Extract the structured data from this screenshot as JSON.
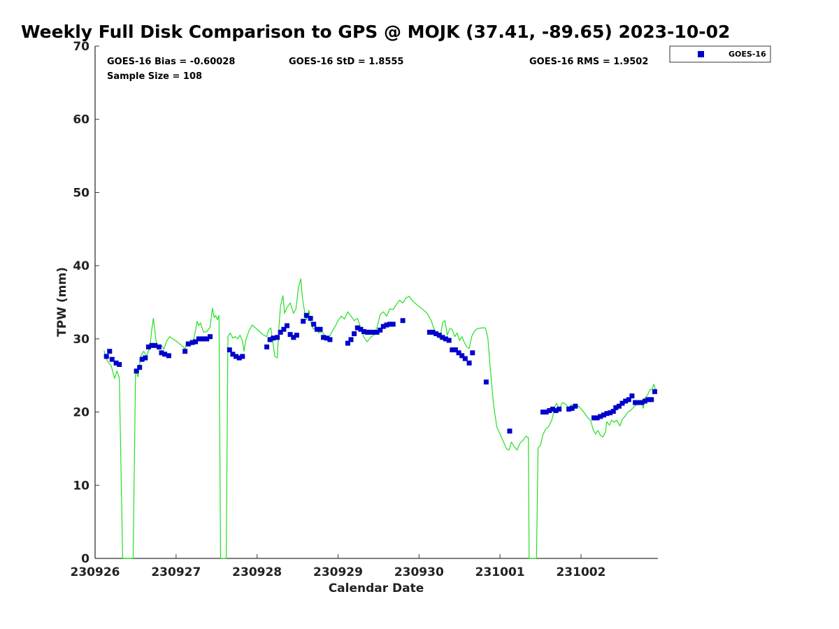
{
  "chart_data": {
    "type": "scatter",
    "title": "Weekly Full Disk Comparison to GPS @ MOJK (37.41, -89.65) 2023-10-02",
    "xlabel": "Calendar Date",
    "ylabel": "TPW (mm)",
    "xlim": [
      0,
      6.95
    ],
    "ylim": [
      0,
      70
    ],
    "x_tick_values": [
      0,
      1,
      2,
      3,
      4,
      5,
      6
    ],
    "x_tick_labels": [
      "230926",
      "230927",
      "230928",
      "230929",
      "230930",
      "231001",
      "231002"
    ],
    "y_tick_values": [
      0,
      10,
      20,
      30,
      40,
      50,
      60,
      70
    ],
    "y_tick_labels": [
      "0",
      "10",
      "20",
      "30",
      "40",
      "50",
      "60",
      "70"
    ],
    "grid": false,
    "legend": {
      "position": "top-right",
      "entries": [
        {
          "label": "GOES-16",
          "color": "#0000cc",
          "marker": "square"
        }
      ]
    },
    "stats": {
      "bias": "GOES-16 Bias = -0.60028",
      "std": "GOES-16 StD = 1.8555",
      "rms": "GOES-16 RMS = 1.9502",
      "sample": "Sample Size = 108"
    },
    "series": [
      {
        "name": "GOES-16",
        "kind": "markers",
        "color": "#0000cc",
        "points": [
          [
            0.14,
            27.6
          ],
          [
            0.18,
            28.3
          ],
          [
            0.21,
            27.2
          ],
          [
            0.26,
            26.7
          ],
          [
            0.3,
            26.5
          ],
          [
            0.51,
            25.6
          ],
          [
            0.55,
            26.1
          ],
          [
            0.58,
            27.2
          ],
          [
            0.62,
            27.4
          ],
          [
            0.66,
            28.9
          ],
          [
            0.7,
            29.1
          ],
          [
            0.74,
            29.1
          ],
          [
            0.79,
            28.9
          ],
          [
            0.82,
            28.1
          ],
          [
            0.86,
            27.9
          ],
          [
            0.91,
            27.7
          ],
          [
            1.11,
            28.3
          ],
          [
            1.15,
            29.3
          ],
          [
            1.2,
            29.5
          ],
          [
            1.24,
            29.6
          ],
          [
            1.28,
            30.0
          ],
          [
            1.32,
            30.0
          ],
          [
            1.35,
            30.0
          ],
          [
            1.38,
            30.0
          ],
          [
            1.42,
            30.3
          ],
          [
            1.66,
            28.5
          ],
          [
            1.7,
            27.9
          ],
          [
            1.74,
            27.6
          ],
          [
            1.78,
            27.4
          ],
          [
            1.82,
            27.6
          ],
          [
            2.12,
            28.9
          ],
          [
            2.16,
            29.9
          ],
          [
            2.2,
            30.1
          ],
          [
            2.25,
            30.2
          ],
          [
            2.29,
            30.9
          ],
          [
            2.33,
            31.3
          ],
          [
            2.37,
            31.8
          ],
          [
            2.41,
            30.6
          ],
          [
            2.45,
            30.2
          ],
          [
            2.49,
            30.5
          ],
          [
            2.57,
            32.4
          ],
          [
            2.61,
            33.2
          ],
          [
            2.66,
            32.8
          ],
          [
            2.7,
            32.0
          ],
          [
            2.74,
            31.3
          ],
          [
            2.78,
            31.3
          ],
          [
            2.82,
            30.2
          ],
          [
            2.86,
            30.1
          ],
          [
            2.9,
            29.9
          ],
          [
            3.12,
            29.4
          ],
          [
            3.16,
            29.9
          ],
          [
            3.2,
            30.7
          ],
          [
            3.24,
            31.5
          ],
          [
            3.28,
            31.3
          ],
          [
            3.32,
            31.0
          ],
          [
            3.36,
            30.9
          ],
          [
            3.4,
            30.9
          ],
          [
            3.44,
            30.9
          ],
          [
            3.48,
            30.9
          ],
          [
            3.52,
            31.2
          ],
          [
            3.56,
            31.7
          ],
          [
            3.6,
            31.9
          ],
          [
            3.64,
            32.0
          ],
          [
            3.68,
            32.0
          ],
          [
            3.8,
            32.5
          ],
          [
            4.13,
            30.9
          ],
          [
            4.17,
            30.9
          ],
          [
            4.21,
            30.7
          ],
          [
            4.25,
            30.5
          ],
          [
            4.29,
            30.2
          ],
          [
            4.33,
            30.0
          ],
          [
            4.37,
            29.8
          ],
          [
            4.41,
            28.5
          ],
          [
            4.45,
            28.5
          ],
          [
            4.49,
            28.1
          ],
          [
            4.53,
            27.7
          ],
          [
            4.57,
            27.3
          ],
          [
            4.62,
            26.7
          ],
          [
            4.66,
            28.1
          ],
          [
            4.83,
            24.1
          ],
          [
            5.12,
            17.4
          ],
          [
            5.53,
            20.0
          ],
          [
            5.57,
            20.0
          ],
          [
            5.61,
            20.2
          ],
          [
            5.65,
            20.4
          ],
          [
            5.69,
            20.2
          ],
          [
            5.73,
            20.4
          ],
          [
            5.85,
            20.4
          ],
          [
            5.89,
            20.5
          ],
          [
            5.93,
            20.8
          ],
          [
            6.16,
            19.2
          ],
          [
            6.2,
            19.2
          ],
          [
            6.24,
            19.4
          ],
          [
            6.28,
            19.6
          ],
          [
            6.32,
            19.8
          ],
          [
            6.36,
            19.9
          ],
          [
            6.4,
            20.1
          ],
          [
            6.43,
            20.6
          ],
          [
            6.47,
            20.8
          ],
          [
            6.51,
            21.2
          ],
          [
            6.55,
            21.5
          ],
          [
            6.59,
            21.7
          ],
          [
            6.63,
            22.2
          ],
          [
            6.67,
            21.3
          ],
          [
            6.71,
            21.3
          ],
          [
            6.75,
            21.3
          ],
          [
            6.79,
            21.5
          ],
          [
            6.83,
            21.7
          ],
          [
            6.87,
            21.7
          ],
          [
            6.91,
            22.8
          ]
        ]
      },
      {
        "kind": "line",
        "color": "#22e022",
        "points": [
          [
            0.11,
            28.4
          ],
          [
            0.15,
            27.0
          ],
          [
            0.2,
            26.3
          ],
          [
            0.24,
            24.6
          ],
          [
            0.27,
            25.6
          ],
          [
            0.3,
            24.7
          ],
          [
            0.34,
            0
          ],
          [
            0.47,
            0
          ],
          [
            0.5,
            25.7
          ],
          [
            0.53,
            24.8
          ],
          [
            0.56,
            27.5
          ],
          [
            0.6,
            28.3
          ],
          [
            0.64,
            27.6
          ],
          [
            0.68,
            29.2
          ],
          [
            0.7,
            31.3
          ],
          [
            0.72,
            32.8
          ],
          [
            0.75,
            29.9
          ],
          [
            0.78,
            28.5
          ],
          [
            0.82,
            29.1
          ],
          [
            0.85,
            28.6
          ],
          [
            0.88,
            29.6
          ],
          [
            0.92,
            30.3
          ],
          [
            1.0,
            29.7
          ],
          [
            1.08,
            29.0
          ],
          [
            1.11,
            28.6
          ],
          [
            1.14,
            29.7
          ],
          [
            1.18,
            29.1
          ],
          [
            1.22,
            30.0
          ],
          [
            1.26,
            32.4
          ],
          [
            1.28,
            31.8
          ],
          [
            1.3,
            32.2
          ],
          [
            1.34,
            30.9
          ],
          [
            1.38,
            31.0
          ],
          [
            1.42,
            31.6
          ],
          [
            1.45,
            34.2
          ],
          [
            1.47,
            32.9
          ],
          [
            1.49,
            33.2
          ],
          [
            1.51,
            32.6
          ],
          [
            1.53,
            33.2
          ],
          [
            1.55,
            0
          ],
          [
            1.62,
            0
          ],
          [
            1.64,
            30.3
          ],
          [
            1.67,
            30.8
          ],
          [
            1.7,
            30.1
          ],
          [
            1.73,
            30.3
          ],
          [
            1.76,
            30.0
          ],
          [
            1.79,
            30.5
          ],
          [
            1.82,
            29.7
          ],
          [
            1.84,
            28.3
          ],
          [
            1.86,
            29.8
          ],
          [
            1.9,
            31.1
          ],
          [
            1.94,
            31.9
          ],
          [
            2.0,
            31.3
          ],
          [
            2.07,
            30.6
          ],
          [
            2.12,
            30.3
          ],
          [
            2.14,
            31.2
          ],
          [
            2.17,
            31.5
          ],
          [
            2.2,
            29.2
          ],
          [
            2.22,
            27.6
          ],
          [
            2.25,
            27.4
          ],
          [
            2.27,
            31.5
          ],
          [
            2.29,
            34.5
          ],
          [
            2.32,
            35.9
          ],
          [
            2.34,
            33.5
          ],
          [
            2.37,
            34.3
          ],
          [
            2.41,
            34.9
          ],
          [
            2.45,
            33.5
          ],
          [
            2.48,
            34.1
          ],
          [
            2.51,
            36.9
          ],
          [
            2.54,
            38.2
          ],
          [
            2.56,
            35.6
          ],
          [
            2.59,
            33.5
          ],
          [
            2.61,
            32.6
          ],
          [
            2.64,
            33.9
          ],
          [
            2.67,
            31.9
          ],
          [
            2.7,
            31.3
          ],
          [
            2.73,
            31.7
          ],
          [
            2.76,
            30.8
          ],
          [
            2.8,
            31.0
          ],
          [
            2.84,
            30.4
          ],
          [
            2.88,
            30.0
          ],
          [
            2.92,
            30.9
          ],
          [
            2.97,
            31.8
          ],
          [
            3.0,
            32.5
          ],
          [
            3.04,
            33.1
          ],
          [
            3.08,
            32.7
          ],
          [
            3.12,
            33.7
          ],
          [
            3.16,
            33.1
          ],
          [
            3.2,
            32.5
          ],
          [
            3.24,
            32.8
          ],
          [
            3.28,
            31.5
          ],
          [
            3.32,
            30.2
          ],
          [
            3.36,
            29.6
          ],
          [
            3.4,
            30.2
          ],
          [
            3.44,
            30.5
          ],
          [
            3.48,
            31.5
          ],
          [
            3.52,
            33.3
          ],
          [
            3.56,
            33.7
          ],
          [
            3.6,
            33.1
          ],
          [
            3.64,
            34.1
          ],
          [
            3.68,
            34.0
          ],
          [
            3.72,
            34.7
          ],
          [
            3.76,
            35.3
          ],
          [
            3.8,
            34.9
          ],
          [
            3.84,
            35.6
          ],
          [
            3.88,
            35.8
          ],
          [
            3.92,
            35.2
          ],
          [
            3.98,
            34.6
          ],
          [
            4.04,
            34.1
          ],
          [
            4.1,
            33.5
          ],
          [
            4.15,
            32.5
          ],
          [
            4.18,
            31.5
          ],
          [
            4.22,
            30.5
          ],
          [
            4.26,
            30.0
          ],
          [
            4.29,
            32.2
          ],
          [
            4.32,
            32.5
          ],
          [
            4.35,
            30.5
          ],
          [
            4.38,
            31.4
          ],
          [
            4.41,
            31.3
          ],
          [
            4.44,
            30.3
          ],
          [
            4.47,
            30.8
          ],
          [
            4.5,
            29.8
          ],
          [
            4.53,
            30.3
          ],
          [
            4.56,
            29.5
          ],
          [
            4.59,
            28.9
          ],
          [
            4.62,
            28.7
          ],
          [
            4.65,
            30.3
          ],
          [
            4.68,
            31.0
          ],
          [
            4.72,
            31.4
          ],
          [
            4.78,
            31.5
          ],
          [
            4.82,
            31.5
          ],
          [
            4.85,
            30.1
          ],
          [
            4.88,
            26.0
          ],
          [
            4.92,
            21.0
          ],
          [
            4.96,
            18.0
          ],
          [
            5.0,
            17.0
          ],
          [
            5.04,
            16.0
          ],
          [
            5.08,
            15.0
          ],
          [
            5.11,
            14.8
          ],
          [
            5.14,
            15.9
          ],
          [
            5.18,
            15.2
          ],
          [
            5.21,
            14.8
          ],
          [
            5.25,
            15.8
          ],
          [
            5.29,
            16.2
          ],
          [
            5.32,
            16.7
          ],
          [
            5.35,
            16.5
          ],
          [
            5.36,
            0
          ],
          [
            5.45,
            0
          ],
          [
            5.47,
            15.1
          ],
          [
            5.5,
            15.5
          ],
          [
            5.53,
            16.9
          ],
          [
            5.56,
            17.6
          ],
          [
            5.6,
            18.0
          ],
          [
            5.64,
            18.9
          ],
          [
            5.68,
            20.8
          ],
          [
            5.7,
            21.2
          ],
          [
            5.73,
            20.4
          ],
          [
            5.77,
            21.3
          ],
          [
            5.81,
            21.1
          ],
          [
            5.85,
            20.6
          ],
          [
            5.88,
            21.0
          ],
          [
            5.92,
            20.5
          ],
          [
            5.97,
            20.8
          ],
          [
            6.02,
            20.2
          ],
          [
            6.08,
            19.3
          ],
          [
            6.12,
            18.8
          ],
          [
            6.15,
            17.6
          ],
          [
            6.18,
            17.0
          ],
          [
            6.21,
            17.5
          ],
          [
            6.24,
            16.8
          ],
          [
            6.27,
            16.6
          ],
          [
            6.3,
            17.2
          ],
          [
            6.32,
            18.7
          ],
          [
            6.35,
            18.2
          ],
          [
            6.38,
            18.9
          ],
          [
            6.41,
            18.6
          ],
          [
            6.44,
            18.9
          ],
          [
            6.48,
            18.1
          ],
          [
            6.51,
            19.0
          ],
          [
            6.55,
            19.5
          ],
          [
            6.58,
            20.0
          ],
          [
            6.62,
            20.3
          ],
          [
            6.66,
            20.8
          ],
          [
            6.7,
            21.1
          ],
          [
            6.74,
            21.4
          ],
          [
            6.77,
            20.5
          ],
          [
            6.79,
            21.9
          ],
          [
            6.82,
            22.3
          ],
          [
            6.85,
            23.0
          ],
          [
            6.88,
            23.2
          ],
          [
            6.9,
            23.8
          ],
          [
            6.93,
            22.6
          ]
        ]
      }
    ]
  }
}
